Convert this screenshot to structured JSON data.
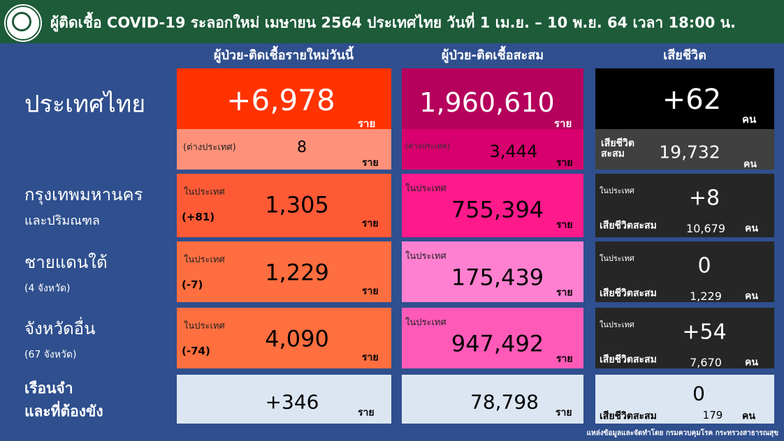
{
  "header": {
    "title": "ผู้ติดเชื้อ COVID-19 ระลอกใหม่ เมษายน 2564 ประเทศไทย วันที่ 1 เม.ย. – 10 พ.ย. 64 เวลา 18:00 น."
  },
  "columns": [
    "ผู้ป่วย-ติดเชื้อรายใหม่วันนี้",
    "ผู้ป่วย-ติดเชื้อสะสม",
    "เสียชีวิต"
  ],
  "rows": [
    {
      "label": "ประเทศไทย",
      "new": {
        "value": "+6,978",
        "unit": "ราย"
      },
      "new_abroad": {
        "label": "(ต่างประเทศ)",
        "value": "8",
        "unit": "ราย"
      },
      "total": {
        "value": "1,960,610",
        "unit": "ราย"
      },
      "total_abroad": {
        "label": "(ต่างประเทศ)",
        "value": "3,444",
        "unit": "ราย"
      },
      "deaths": {
        "value": "+62",
        "unit": "คน"
      },
      "deaths_total": {
        "label": "เสียชีวิต สะสม",
        "value": "19,732",
        "unit": "คน"
      }
    },
    {
      "label": "กรุงเทพมหานคร",
      "sublabel": "และปริมณฑล",
      "new": {
        "label": "ในประเทศ",
        "change": "(+81)",
        "value": "1,305",
        "unit": "ราย"
      },
      "total": {
        "label": "ในประเทศ",
        "value": "755,394",
        "unit": "ราย"
      },
      "deaths": {
        "label": "ในประเทศ",
        "value": "+8",
        "total_label": "เสียชีวิตสะสม",
        "total": "10,679",
        "unit": "คน"
      }
    },
    {
      "label": "ชายแดนใต้",
      "sublabel": "(4 จังหวัด)",
      "new": {
        "label": "ในประเทศ",
        "change": "(-7)",
        "value": "1,229",
        "unit": "ราย"
      },
      "total": {
        "label": "ในประเทศ",
        "value": "175,439",
        "unit": "ราย"
      },
      "deaths": {
        "label": "ในประเทศ",
        "value": "0",
        "total_label": "เสียชีวิตสะสม",
        "total": "1,229",
        "unit": "คน"
      }
    },
    {
      "label": "จังหวัดอื่น",
      "sublabel": "(67 จังหวัด)",
      "new": {
        "label": "ในประเทศ",
        "change": "(-74)",
        "value": "4,090",
        "unit": "ราย"
      },
      "total": {
        "label": "ในประเทศ",
        "value": "947,492",
        "unit": "ราย"
      },
      "deaths": {
        "label": "ในประเทศ",
        "value": "+54",
        "total_label": "เสียชีวิตสะสม",
        "total": "7,670",
        "unit": "คน"
      }
    },
    {
      "label": "เรือนจำ",
      "sublabel": "และที่ต้องขัง",
      "new": {
        "value": "+346",
        "unit": "ราย"
      },
      "total": {
        "value": "78,798",
        "unit": "ราย"
      },
      "deaths": {
        "value": "0",
        "total_label": "เสียชีวิตสะสม",
        "total": "179",
        "unit": "คน"
      }
    }
  ],
  "footer": {
    "source": "แหล่งข้อมูลและจัดทำโดย กรมควบคุมโรค กระทรวงสาธารณสุข"
  }
}
